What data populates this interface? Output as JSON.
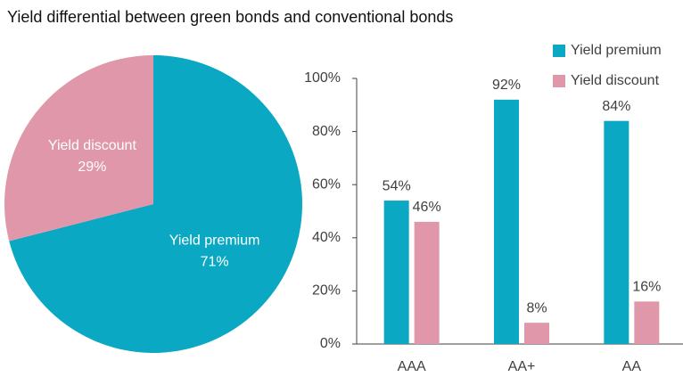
{
  "title": "Yield differential between green bonds and conventional bonds",
  "chart_data": [
    {
      "type": "pie",
      "categories": [
        "Yield premium",
        "Yield discount"
      ],
      "values": [
        71,
        29
      ],
      "value_labels": [
        "71%",
        "29%"
      ],
      "colors": [
        "#0aa8c2",
        "#e097aa"
      ]
    },
    {
      "type": "bar",
      "categories": [
        "AAA",
        "AA+",
        "AA"
      ],
      "series": [
        {
          "name": "Yield premium",
          "color": "#0aa8c2",
          "values": [
            54,
            92,
            84
          ],
          "value_labels": [
            "54%",
            "92%",
            "84%"
          ]
        },
        {
          "name": "Yield discount",
          "color": "#e097aa",
          "values": [
            46,
            8,
            16
          ],
          "value_labels": [
            "46%",
            "8%",
            "16%"
          ]
        }
      ],
      "ylim": [
        0,
        100
      ],
      "yticks": [
        {
          "value": 0,
          "label": "0%"
        },
        {
          "value": 20,
          "label": "20%"
        },
        {
          "value": 40,
          "label": "40%"
        },
        {
          "value": 60,
          "label": "60%"
        },
        {
          "value": 80,
          "label": "80%"
        },
        {
          "value": 100,
          "label": "100%"
        }
      ],
      "legend": "top-right"
    }
  ]
}
